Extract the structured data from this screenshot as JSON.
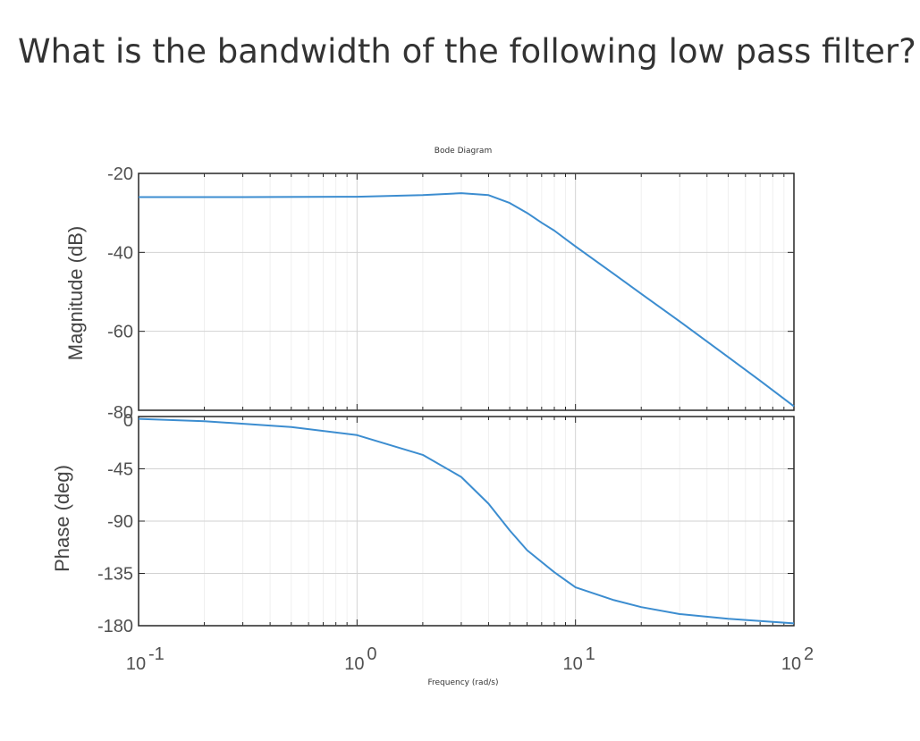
{
  "question": {
    "text": "What is the bandwidth of the following low pass filter?"
  },
  "chart_data": {
    "type": "line",
    "title": "Bode Diagram",
    "xlabel": "Frequency  (rad/s)",
    "xscale": "log",
    "xlim": [
      0.1,
      100
    ],
    "x_ticks": [
      {
        "base": "10",
        "exp": "-1"
      },
      {
        "base": "10",
        "exp": "0"
      },
      {
        "base": "10",
        "exp": "1"
      },
      {
        "base": "10",
        "exp": "2"
      }
    ],
    "grid": true,
    "line_color": "#3c8dd0",
    "magnitude": {
      "ylabel": "Magnitude (dB)",
      "ylim": [
        -80,
        -20
      ],
      "y_ticks": [
        "-20",
        "-40",
        "-60",
        "-80"
      ],
      "x": [
        0.1,
        0.3,
        1,
        2,
        3,
        4,
        5,
        6,
        7,
        8,
        10,
        15,
        20,
        30,
        50,
        70,
        100
      ],
      "y": [
        -26,
        -26,
        -25.9,
        -25.5,
        -25.0,
        -25.5,
        -27.5,
        -30,
        -32.5,
        -34.5,
        -38.5,
        -45.5,
        -50.5,
        -57.5,
        -66.5,
        -72.5,
        -79
      ]
    },
    "phase": {
      "ylabel": "Phase (deg)",
      "ylim": [
        -180,
        0
      ],
      "y_ticks": [
        "0",
        "-45",
        "-90",
        "-135",
        "-180"
      ],
      "x": [
        0.1,
        0.2,
        0.5,
        1,
        2,
        3,
        4,
        5,
        6,
        8,
        10,
        15,
        20,
        30,
        50,
        70,
        100
      ],
      "y": [
        -2,
        -4,
        -9,
        -16,
        -33,
        -52,
        -75,
        -98,
        -115,
        -134,
        -147,
        -158,
        -164,
        -170,
        -174,
        -176,
        -178
      ]
    }
  }
}
